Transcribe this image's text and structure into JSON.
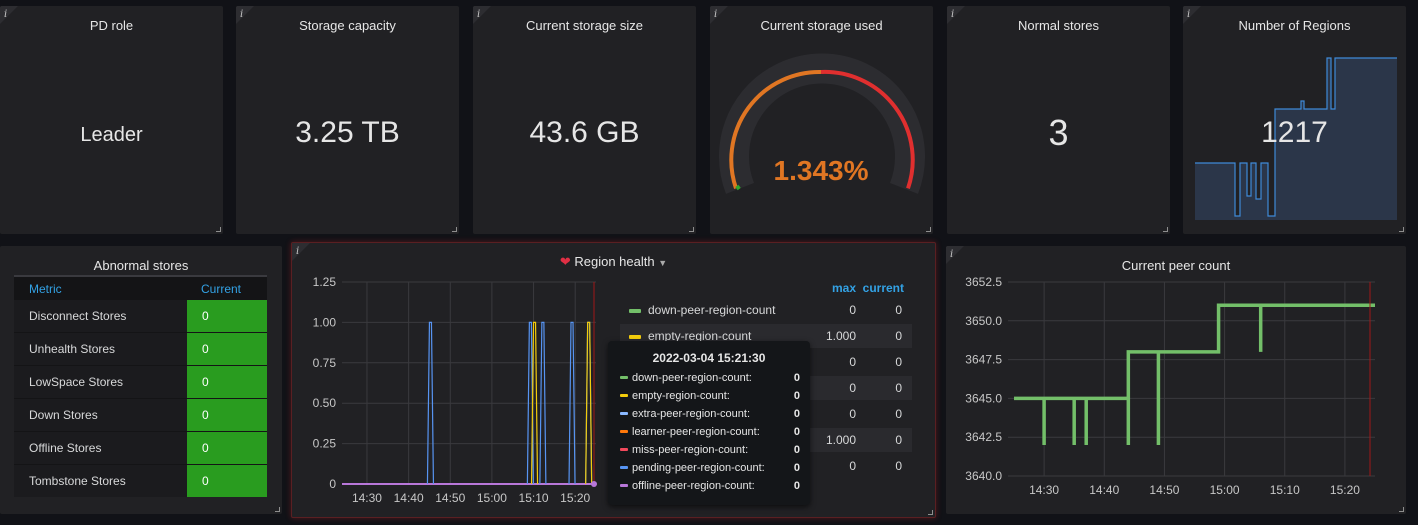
{
  "stat_panels": [
    {
      "title": "PD role",
      "value": "Leader"
    },
    {
      "title": "Storage capacity",
      "value": "3.25 TB"
    },
    {
      "title": "Current storage size",
      "value": "43.6 GB"
    },
    {
      "title": "Current storage used",
      "value": "1.343%",
      "gauge_fraction": 0.01343
    },
    {
      "title": "Normal stores",
      "value": "3"
    },
    {
      "title": "Number of Regions",
      "value": "1217"
    }
  ],
  "info_icon": "i",
  "abnormal": {
    "title": "Abnormal stores",
    "col_metric": "Metric",
    "col_current": "Current",
    "rows": [
      {
        "metric": "Disconnect Stores",
        "current": "0"
      },
      {
        "metric": "Unhealth Stores",
        "current": "0"
      },
      {
        "metric": "LowSpace Stores",
        "current": "0"
      },
      {
        "metric": "Down Stores",
        "current": "0"
      },
      {
        "metric": "Offline Stores",
        "current": "0"
      },
      {
        "metric": "Tombstone Stores",
        "current": "0"
      }
    ]
  },
  "region_health": {
    "title": "Region health",
    "legend_headers": {
      "max": "max",
      "current": "current"
    },
    "legend": [
      {
        "name": "down-peer-region-count",
        "max": "0",
        "current": "0",
        "color": "#73bf69"
      },
      {
        "name": "empty-region-count",
        "max": "1.000",
        "current": "0",
        "color": "#f2cc0c"
      },
      {
        "name": "extra-peer-region-count",
        "max": "0",
        "current": "0",
        "color": "#8ab8ff"
      },
      {
        "name": "learner-peer-region-count",
        "max": "0",
        "current": "0",
        "color": "#ff780a"
      },
      {
        "name": "miss-peer-region-count",
        "max": "0",
        "current": "0",
        "color": "#f2495c"
      },
      {
        "name": "pending-peer-region-count",
        "max": "1.000",
        "current": "0",
        "color": "#5794f2"
      },
      {
        "name": "offline-peer-region-count",
        "max": "0",
        "current": "0",
        "color": "#b877d9"
      }
    ],
    "tooltip": {
      "time": "2022-03-04 15:21:30",
      "rows": [
        {
          "label": "down-peer-region-count:",
          "value": "0",
          "color": "#73bf69"
        },
        {
          "label": "empty-region-count:",
          "value": "0",
          "color": "#f2cc0c"
        },
        {
          "label": "extra-peer-region-count:",
          "value": "0",
          "color": "#8ab8ff"
        },
        {
          "label": "learner-peer-region-count:",
          "value": "0",
          "color": "#ff780a"
        },
        {
          "label": "miss-peer-region-count:",
          "value": "0",
          "color": "#f2495c"
        },
        {
          "label": "pending-peer-region-count:",
          "value": "0",
          "color": "#5794f2"
        },
        {
          "label": "offline-peer-region-count:",
          "value": "0",
          "color": "#b877d9"
        }
      ]
    }
  },
  "peer_count_title": "Current peer count",
  "chart_data": [
    {
      "type": "line",
      "title": "Region health",
      "x": [
        "14:30",
        "14:40",
        "14:50",
        "15:00",
        "15:10",
        "15:20"
      ],
      "ylim": [
        0,
        1.25
      ],
      "yticks": [
        "0",
        "0.25",
        "0.50",
        "0.75",
        "1.00",
        "1.25"
      ],
      "spikes": [
        {
          "series": "pending-peer-region-count",
          "times_min": [
            14.45,
            15.086,
            15.116,
            15.19,
            15.233
          ],
          "value": 1
        },
        {
          "series": "empty-region-count",
          "times_min": [
            15.1,
            15.228
          ],
          "value": 1
        },
        {
          "series": "offline-peer-region-count",
          "times_min": [],
          "value": 0
        }
      ]
    },
    {
      "type": "line",
      "title": "Current peer count",
      "x": [
        "14:30",
        "14:40",
        "14:50",
        "15:00",
        "15:10",
        "15:20"
      ],
      "ylim": [
        3640.0,
        3652.5
      ],
      "yticks": [
        "3640.0",
        "3642.5",
        "3645.0",
        "3647.5",
        "3650.0",
        "3652.5"
      ],
      "series": [
        {
          "name": "peer count",
          "color": "#73bf69",
          "points": [
            [
              "14:25",
              3645
            ],
            [
              "14:30",
              3645
            ],
            [
              "14:30",
              3642
            ],
            [
              "14:30",
              3645
            ],
            [
              "14:35",
              3645
            ],
            [
              "14:35",
              3642
            ],
            [
              "14:35",
              3645
            ],
            [
              "14:37",
              3645
            ],
            [
              "14:37",
              3642
            ],
            [
              "14:37",
              3645
            ],
            [
              "14:44",
              3645
            ],
            [
              "14:44",
              3642
            ],
            [
              "14:44",
              3648
            ],
            [
              "14:49",
              3648
            ],
            [
              "14:49",
              3642
            ],
            [
              "14:49",
              3648
            ],
            [
              "14:59",
              3648
            ],
            [
              "14:59",
              3651
            ],
            [
              "15:06",
              3651
            ],
            [
              "15:06",
              3648
            ],
            [
              "15:06",
              3651
            ],
            [
              "15:25",
              3651
            ]
          ]
        }
      ]
    },
    {
      "type": "area",
      "title": "Number of Regions",
      "series": [
        {
          "name": "regions",
          "color": "#5794f2"
        }
      ]
    }
  ]
}
